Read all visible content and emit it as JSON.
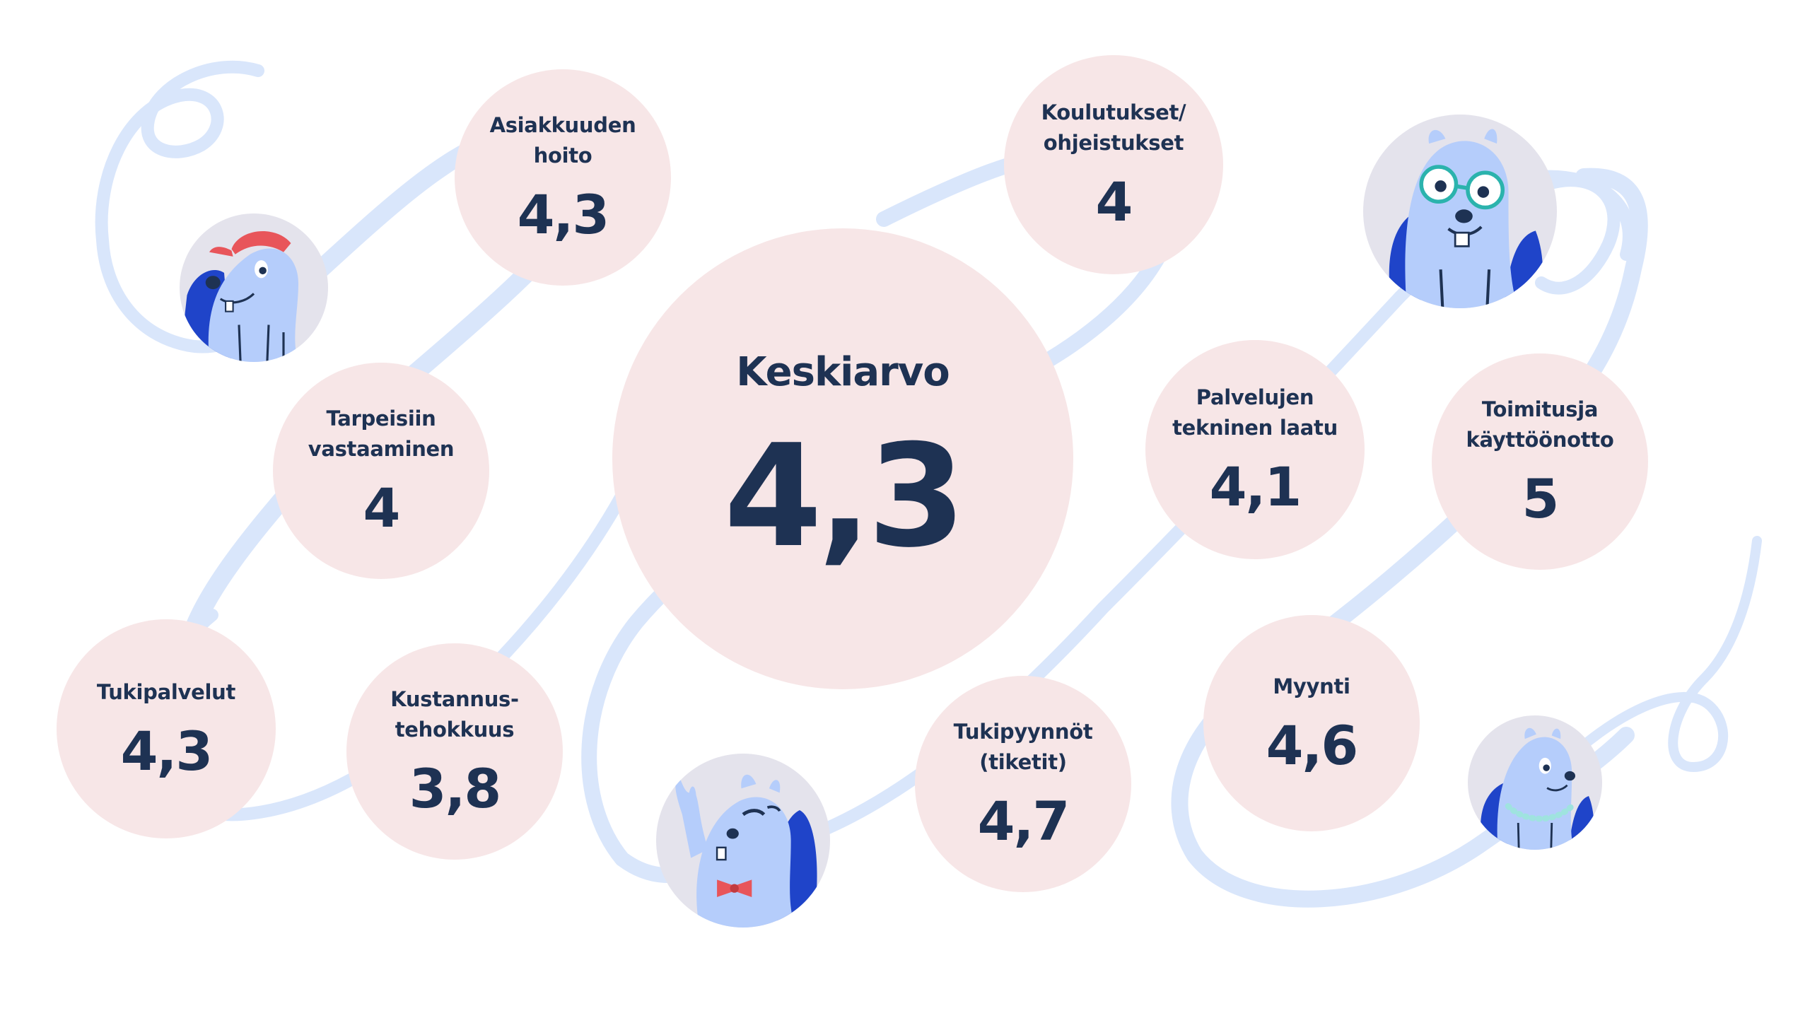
{
  "average": {
    "label": "Keskiarvo",
    "value": "4,3"
  },
  "categories": [
    {
      "label": "Asiakkuuden\nhoito",
      "value": "4,3"
    },
    {
      "label": "Koulutukset/\nohjeistukset",
      "value": "4"
    },
    {
      "label": "Tarpeisiin\nvastaaminen",
      "value": "4"
    },
    {
      "label": "Palvelujen\ntekninen laatu",
      "value": "4,1"
    },
    {
      "label": "Toimitusja\nkäyttöönotto",
      "value": "5"
    },
    {
      "label": "Tukipalvelut",
      "value": "4,3"
    },
    {
      "label": "Kustannus-\ntehokkuus",
      "value": "3,8"
    },
    {
      "label": "Tukipyynnöt\n(tiketit)",
      "value": "4,7"
    },
    {
      "label": "Myynti",
      "value": "4,6"
    }
  ],
  "colors": {
    "bubble": "#f7e6e7",
    "text": "#1e3253",
    "ribbon": "#d9e6fb",
    "mascot": "#b5cdfb",
    "backpack": "#1f44c9",
    "avatar_bg": "#e4e3ec"
  },
  "mascots": [
    "beaver-red-cap-icon",
    "beaver-glasses-icon",
    "beaver-bowtie-waving-icon",
    "beaver-pearl-necklace-icon"
  ]
}
